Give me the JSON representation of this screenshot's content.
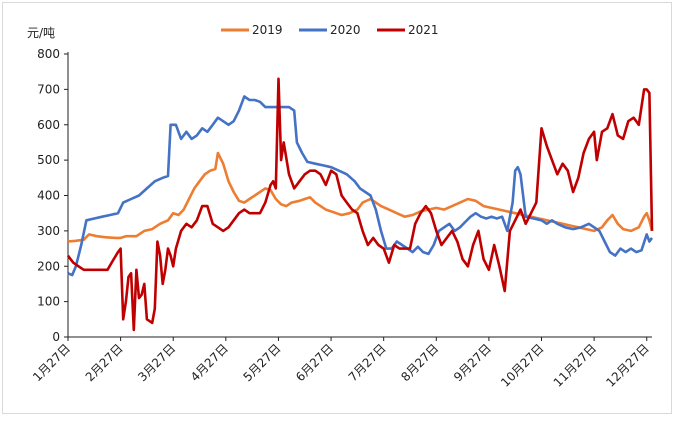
{
  "chart_data": {
    "type": "line",
    "title": "",
    "xlabel": "",
    "ylabel": "元/吨",
    "ylim": [
      0,
      800
    ],
    "yticks": [
      0,
      100,
      200,
      300,
      400,
      500,
      600,
      700,
      800
    ],
    "xticks": [
      "1月27日",
      "2月27日",
      "3月27日",
      "4月27日",
      "5月27日",
      "6月27日",
      "7月27日",
      "8月27日",
      "9月27日",
      "10月27日",
      "11月27日",
      "12月27日"
    ],
    "x_range_months": [
      0,
      11.1
    ],
    "grid": false,
    "legend_position": "top-center",
    "series": [
      {
        "name": "2019",
        "color": "#ED7D31",
        "points": [
          [
            0.0,
            270
          ],
          [
            0.15,
            272
          ],
          [
            0.3,
            275
          ],
          [
            0.4,
            290
          ],
          [
            0.55,
            285
          ],
          [
            0.7,
            282
          ],
          [
            0.9,
            280
          ],
          [
            1.0,
            280
          ],
          [
            1.1,
            285
          ],
          [
            1.3,
            285
          ],
          [
            1.45,
            300
          ],
          [
            1.6,
            305
          ],
          [
            1.75,
            320
          ],
          [
            1.9,
            330
          ],
          [
            2.0,
            350
          ],
          [
            2.1,
            345
          ],
          [
            2.2,
            360
          ],
          [
            2.3,
            390
          ],
          [
            2.4,
            420
          ],
          [
            2.5,
            440
          ],
          [
            2.6,
            460
          ],
          [
            2.7,
            470
          ],
          [
            2.8,
            475
          ],
          [
            2.85,
            520
          ],
          [
            2.95,
            490
          ],
          [
            3.05,
            440
          ],
          [
            3.15,
            410
          ],
          [
            3.25,
            385
          ],
          [
            3.35,
            380
          ],
          [
            3.45,
            390
          ],
          [
            3.55,
            400
          ],
          [
            3.65,
            410
          ],
          [
            3.75,
            420
          ],
          [
            3.85,
            415
          ],
          [
            3.95,
            390
          ],
          [
            4.05,
            375
          ],
          [
            4.15,
            370
          ],
          [
            4.25,
            380
          ],
          [
            4.4,
            385
          ],
          [
            4.5,
            390
          ],
          [
            4.6,
            395
          ],
          [
            4.7,
            380
          ],
          [
            4.8,
            370
          ],
          [
            4.9,
            360
          ],
          [
            5.0,
            355
          ],
          [
            5.1,
            350
          ],
          [
            5.2,
            345
          ],
          [
            5.35,
            350
          ],
          [
            5.5,
            360
          ],
          [
            5.6,
            380
          ],
          [
            5.75,
            390
          ],
          [
            5.85,
            380
          ],
          [
            5.95,
            370
          ],
          [
            6.1,
            360
          ],
          [
            6.25,
            350
          ],
          [
            6.4,
            340
          ],
          [
            6.55,
            345
          ],
          [
            6.7,
            355
          ],
          [
            6.85,
            360
          ],
          [
            7.0,
            365
          ],
          [
            7.15,
            360
          ],
          [
            7.3,
            370
          ],
          [
            7.45,
            380
          ],
          [
            7.6,
            390
          ],
          [
            7.75,
            385
          ],
          [
            7.9,
            370
          ],
          [
            8.05,
            365
          ],
          [
            8.2,
            360
          ],
          [
            8.35,
            355
          ],
          [
            8.5,
            350
          ],
          [
            8.65,
            345
          ],
          [
            8.8,
            340
          ],
          [
            8.95,
            335
          ],
          [
            9.1,
            330
          ],
          [
            9.25,
            325
          ],
          [
            9.4,
            320
          ],
          [
            9.55,
            315
          ],
          [
            9.7,
            310
          ],
          [
            9.85,
            305
          ],
          [
            10.0,
            300
          ],
          [
            10.15,
            310
          ],
          [
            10.25,
            330
          ],
          [
            10.35,
            345
          ],
          [
            10.45,
            320
          ],
          [
            10.55,
            305
          ],
          [
            10.7,
            300
          ],
          [
            10.85,
            310
          ],
          [
            10.95,
            340
          ],
          [
            11.0,
            350
          ],
          [
            11.05,
            330
          ],
          [
            11.1,
            300
          ]
        ]
      },
      {
        "name": "2020",
        "color": "#4472C4",
        "points": [
          [
            0.0,
            180
          ],
          [
            0.08,
            175
          ],
          [
            0.15,
            200
          ],
          [
            0.25,
            260
          ],
          [
            0.35,
            330
          ],
          [
            0.5,
            335
          ],
          [
            0.65,
            340
          ],
          [
            0.8,
            345
          ],
          [
            0.95,
            350
          ],
          [
            1.05,
            380
          ],
          [
            1.2,
            390
          ],
          [
            1.35,
            400
          ],
          [
            1.5,
            420
          ],
          [
            1.65,
            440
          ],
          [
            1.8,
            450
          ],
          [
            1.9,
            455
          ],
          [
            1.95,
            600
          ],
          [
            2.05,
            600
          ],
          [
            2.15,
            560
          ],
          [
            2.25,
            580
          ],
          [
            2.35,
            560
          ],
          [
            2.45,
            570
          ],
          [
            2.55,
            590
          ],
          [
            2.65,
            580
          ],
          [
            2.75,
            600
          ],
          [
            2.85,
            620
          ],
          [
            2.95,
            610
          ],
          [
            3.05,
            600
          ],
          [
            3.15,
            610
          ],
          [
            3.25,
            640
          ],
          [
            3.35,
            680
          ],
          [
            3.45,
            670
          ],
          [
            3.55,
            670
          ],
          [
            3.65,
            665
          ],
          [
            3.75,
            650
          ],
          [
            3.9,
            650
          ],
          [
            4.05,
            650
          ],
          [
            4.2,
            650
          ],
          [
            4.3,
            640
          ],
          [
            4.35,
            550
          ],
          [
            4.45,
            520
          ],
          [
            4.55,
            495
          ],
          [
            4.7,
            490
          ],
          [
            4.85,
            485
          ],
          [
            5.0,
            480
          ],
          [
            5.15,
            470
          ],
          [
            5.3,
            460
          ],
          [
            5.45,
            440
          ],
          [
            5.55,
            420
          ],
          [
            5.65,
            410
          ],
          [
            5.75,
            400
          ],
          [
            5.85,
            360
          ],
          [
            5.95,
            300
          ],
          [
            6.05,
            250
          ],
          [
            6.15,
            250
          ],
          [
            6.25,
            270
          ],
          [
            6.35,
            260
          ],
          [
            6.45,
            250
          ],
          [
            6.55,
            240
          ],
          [
            6.65,
            255
          ],
          [
            6.75,
            240
          ],
          [
            6.85,
            235
          ],
          [
            6.95,
            260
          ],
          [
            7.05,
            300
          ],
          [
            7.15,
            310
          ],
          [
            7.25,
            320
          ],
          [
            7.35,
            300
          ],
          [
            7.45,
            310
          ],
          [
            7.55,
            325
          ],
          [
            7.65,
            340
          ],
          [
            7.75,
            350
          ],
          [
            7.85,
            340
          ],
          [
            7.95,
            335
          ],
          [
            8.05,
            340
          ],
          [
            8.15,
            335
          ],
          [
            8.25,
            340
          ],
          [
            8.35,
            300
          ],
          [
            8.45,
            380
          ],
          [
            8.5,
            470
          ],
          [
            8.55,
            480
          ],
          [
            8.6,
            460
          ],
          [
            8.7,
            340
          ],
          [
            8.85,
            335
          ],
          [
            9.0,
            330
          ],
          [
            9.1,
            320
          ],
          [
            9.2,
            330
          ],
          [
            9.3,
            320
          ],
          [
            9.45,
            310
          ],
          [
            9.6,
            305
          ],
          [
            9.75,
            310
          ],
          [
            9.9,
            320
          ],
          [
            10.0,
            310
          ],
          [
            10.1,
            300
          ],
          [
            10.2,
            270
          ],
          [
            10.3,
            240
          ],
          [
            10.4,
            230
          ],
          [
            10.5,
            250
          ],
          [
            10.6,
            240
          ],
          [
            10.7,
            250
          ],
          [
            10.8,
            240
          ],
          [
            10.9,
            245
          ],
          [
            11.0,
            290
          ],
          [
            11.05,
            270
          ],
          [
            11.1,
            280
          ]
        ]
      },
      {
        "name": "2021",
        "color": "#C00000",
        "points": [
          [
            0.0,
            230
          ],
          [
            0.05,
            220
          ],
          [
            0.1,
            210
          ],
          [
            0.2,
            200
          ],
          [
            0.3,
            190
          ],
          [
            0.45,
            190
          ],
          [
            0.6,
            190
          ],
          [
            0.75,
            190
          ],
          [
            0.85,
            215
          ],
          [
            0.95,
            240
          ],
          [
            1.0,
            250
          ],
          [
            1.05,
            50
          ],
          [
            1.1,
            100
          ],
          [
            1.15,
            170
          ],
          [
            1.2,
            180
          ],
          [
            1.25,
            20
          ],
          [
            1.3,
            190
          ],
          [
            1.35,
            110
          ],
          [
            1.4,
            120
          ],
          [
            1.45,
            150
          ],
          [
            1.5,
            50
          ],
          [
            1.55,
            45
          ],
          [
            1.6,
            40
          ],
          [
            1.65,
            80
          ],
          [
            1.7,
            270
          ],
          [
            1.75,
            230
          ],
          [
            1.8,
            150
          ],
          [
            1.85,
            190
          ],
          [
            1.9,
            250
          ],
          [
            1.95,
            230
          ],
          [
            2.0,
            200
          ],
          [
            2.05,
            250
          ],
          [
            2.15,
            300
          ],
          [
            2.25,
            320
          ],
          [
            2.35,
            310
          ],
          [
            2.45,
            330
          ],
          [
            2.55,
            370
          ],
          [
            2.65,
            370
          ],
          [
            2.75,
            320
          ],
          [
            2.85,
            310
          ],
          [
            2.95,
            300
          ],
          [
            3.05,
            310
          ],
          [
            3.15,
            330
          ],
          [
            3.25,
            350
          ],
          [
            3.35,
            360
          ],
          [
            3.45,
            350
          ],
          [
            3.55,
            350
          ],
          [
            3.65,
            350
          ],
          [
            3.75,
            380
          ],
          [
            3.85,
            430
          ],
          [
            3.9,
            440
          ],
          [
            3.95,
            420
          ],
          [
            4.0,
            730
          ],
          [
            4.05,
            500
          ],
          [
            4.1,
            550
          ],
          [
            4.2,
            460
          ],
          [
            4.3,
            420
          ],
          [
            4.4,
            440
          ],
          [
            4.5,
            460
          ],
          [
            4.6,
            470
          ],
          [
            4.7,
            470
          ],
          [
            4.8,
            460
          ],
          [
            4.9,
            430
          ],
          [
            5.0,
            470
          ],
          [
            5.1,
            460
          ],
          [
            5.2,
            400
          ],
          [
            5.3,
            380
          ],
          [
            5.4,
            360
          ],
          [
            5.5,
            350
          ],
          [
            5.6,
            300
          ],
          [
            5.7,
            260
          ],
          [
            5.8,
            280
          ],
          [
            5.9,
            260
          ],
          [
            6.0,
            250
          ],
          [
            6.1,
            210
          ],
          [
            6.2,
            260
          ],
          [
            6.3,
            250
          ],
          [
            6.4,
            250
          ],
          [
            6.5,
            250
          ],
          [
            6.6,
            320
          ],
          [
            6.7,
            350
          ],
          [
            6.8,
            370
          ],
          [
            6.9,
            350
          ],
          [
            7.0,
            300
          ],
          [
            7.1,
            260
          ],
          [
            7.2,
            280
          ],
          [
            7.3,
            300
          ],
          [
            7.4,
            270
          ],
          [
            7.5,
            220
          ],
          [
            7.6,
            200
          ],
          [
            7.7,
            260
          ],
          [
            7.8,
            300
          ],
          [
            7.9,
            220
          ],
          [
            8.0,
            190
          ],
          [
            8.1,
            260
          ],
          [
            8.2,
            200
          ],
          [
            8.3,
            130
          ],
          [
            8.4,
            300
          ],
          [
            8.5,
            330
          ],
          [
            8.6,
            360
          ],
          [
            8.7,
            320
          ],
          [
            8.8,
            350
          ],
          [
            8.9,
            380
          ],
          [
            9.0,
            590
          ],
          [
            9.1,
            540
          ],
          [
            9.2,
            500
          ],
          [
            9.3,
            460
          ],
          [
            9.4,
            490
          ],
          [
            9.5,
            470
          ],
          [
            9.6,
            410
          ],
          [
            9.7,
            450
          ],
          [
            9.8,
            520
          ],
          [
            9.9,
            560
          ],
          [
            10.0,
            580
          ],
          [
            10.05,
            500
          ],
          [
            10.15,
            580
          ],
          [
            10.25,
            590
          ],
          [
            10.35,
            630
          ],
          [
            10.45,
            570
          ],
          [
            10.55,
            560
          ],
          [
            10.65,
            610
          ],
          [
            10.75,
            620
          ],
          [
            10.85,
            600
          ],
          [
            10.95,
            700
          ],
          [
            11.0,
            700
          ],
          [
            11.05,
            690
          ],
          [
            11.1,
            300
          ]
        ]
      }
    ]
  }
}
